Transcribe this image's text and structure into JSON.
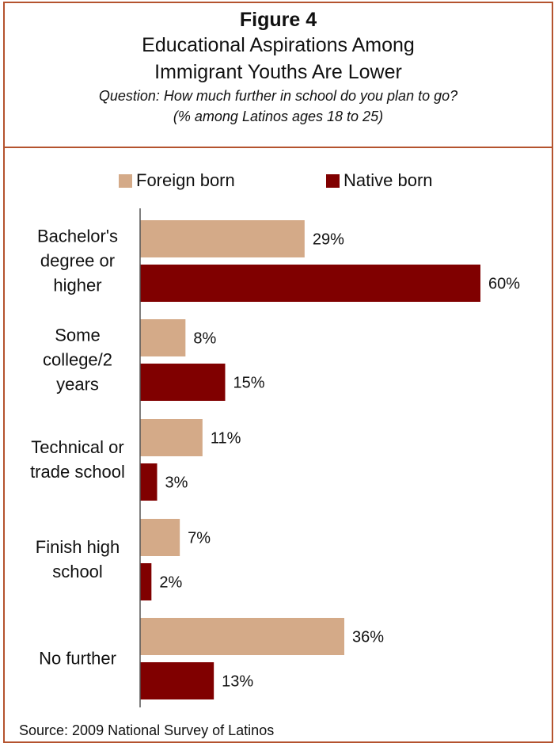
{
  "figure_label": "Figure 4",
  "title_lines": [
    "Educational Aspirations Among",
    "Immigrant Youths Are Lower"
  ],
  "subtitle_lines": [
    "Question: How much further in school do you plan to go?",
    "(% among Latinos ages 18 to 25)"
  ],
  "source": "Source: 2009 National Survey of Latinos",
  "colors": {
    "border": "#b4532e",
    "foreign": "#d4aa88",
    "native": "#800000"
  },
  "legend": [
    "Foreign born",
    "Native born"
  ],
  "chart_data": {
    "type": "bar",
    "orientation": "horizontal",
    "categories": [
      [
        "Bachelor's",
        "degree or",
        "higher"
      ],
      [
        "Some",
        "college/2",
        "years"
      ],
      [
        "Technical or",
        "trade school"
      ],
      [
        "Finish high",
        "school"
      ],
      [
        "No further"
      ]
    ],
    "series": [
      {
        "name": "Foreign born",
        "values": [
          29,
          8,
          11,
          7,
          36
        ],
        "labels": [
          "29%",
          "8%",
          "11%",
          "7%",
          "36%"
        ]
      },
      {
        "name": "Native born",
        "values": [
          60,
          15,
          3,
          2,
          13
        ],
        "labels": [
          "60%",
          "15%",
          "3%",
          "2%",
          "13%"
        ]
      }
    ],
    "value_unit": "%",
    "xlim": [
      0,
      60
    ],
    "legend_position": "top",
    "grid": false
  }
}
